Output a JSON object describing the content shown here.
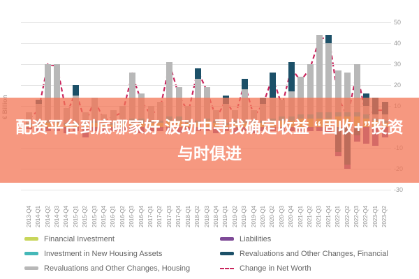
{
  "overlay": {
    "text": "配资平台到底哪家好 波动中寻找确定收益 “固收+”投资与时俱进",
    "bg_rgba": "rgba(243,118,86,0.75)",
    "text_color": "#ffffff"
  },
  "y_axis": {
    "unit_label": "€ Billion",
    "ticks": [
      50,
      40,
      30,
      20,
      10,
      0,
      -10,
      -20,
      -30
    ]
  },
  "legend": [
    {
      "label": "Financial Investment",
      "color": "#c8d65b",
      "type": "bar"
    },
    {
      "label": "Liabilities",
      "color": "#7e4a97",
      "type": "bar"
    },
    {
      "label": "Investment in New Housing Assets",
      "color": "#45b8b8",
      "type": "bar"
    },
    {
      "label": "Revaluations and Other Changes, Financial",
      "color": "#1c5068",
      "type": "bar"
    },
    {
      "label": "Revaluations and Other Changes, Housing",
      "color": "#b8b8b8",
      "type": "bar"
    },
    {
      "label": "Change in Net Worth",
      "color": "#c9255c",
      "type": "line"
    }
  ],
  "chart_data": {
    "type": "bar",
    "stacked": true,
    "grid": true,
    "legend_position": "bottom",
    "ylabel": "€ Billion",
    "ylim": [
      -30,
      50
    ],
    "categories": [
      "2013-Q4",
      "2014-Q1",
      "2014-Q2",
      "2014-Q3",
      "2014-Q4",
      "2015-Q1",
      "2015-Q2",
      "2015-Q3",
      "2015-Q4",
      "2016-Q1",
      "2016-Q2",
      "2016-Q3",
      "2016-Q4",
      "2017-Q1",
      "2017-Q2",
      "2017-Q3",
      "2017-Q4",
      "2018-Q1",
      "2018-Q2",
      "2018-Q3",
      "2018-Q4",
      "2019-Q1",
      "2019-Q2",
      "2019-Q3",
      "2019-Q4",
      "2020-Q1",
      "2020-Q2",
      "2020-Q3",
      "2020-Q4",
      "2021-Q1",
      "2021-Q2",
      "2021-Q3",
      "2021-Q4",
      "2022-Q1",
      "2022-Q2",
      "2022-Q3",
      "2022-Q4",
      "2023-Q1",
      "2023-Q2"
    ],
    "series": [
      {
        "name": "Financial Investment",
        "color": "#c8d65b",
        "values": [
          1,
          1,
          2,
          2,
          1,
          1,
          1,
          2,
          1,
          1,
          2,
          2,
          2,
          2,
          2,
          3,
          3,
          2,
          2,
          3,
          2,
          1,
          2,
          2,
          2,
          2,
          2,
          3,
          3,
          4,
          4,
          4,
          4,
          5,
          5,
          5,
          4,
          3,
          2
        ]
      },
      {
        "name": "Investment in New Housing Assets",
        "color": "#45b8b8",
        "values": [
          1,
          1,
          1,
          1,
          1,
          1,
          1,
          1,
          1,
          1,
          1,
          2,
          2,
          1,
          1,
          2,
          2,
          1,
          1,
          1,
          1,
          1,
          1,
          1,
          1,
          1,
          2,
          2,
          2,
          2,
          2,
          3,
          3,
          2,
          2,
          2,
          2,
          1,
          1
        ]
      },
      {
        "name": "Revaluations and Other Changes, Housing",
        "color": "#b8b8b8",
        "values": [
          5,
          9,
          27,
          27,
          7,
          13,
          5,
          11,
          4,
          6,
          7,
          22,
          12,
          7,
          9,
          26,
          14,
          7,
          20,
          15,
          5,
          9,
          5,
          15,
          5,
          8,
          10,
          8,
          12,
          18,
          24,
          37,
          33,
          20,
          19,
          23,
          4,
          2,
          3
        ]
      },
      {
        "name": "Revaluations and Other Changes, Financial",
        "color": "#1c5068",
        "values": [
          0,
          2,
          0,
          0,
          0,
          5,
          0,
          0,
          0,
          0,
          0,
          0,
          0,
          0,
          0,
          0,
          0,
          0,
          5,
          0,
          0,
          4,
          0,
          5,
          0,
          3,
          12,
          0,
          14,
          0,
          0,
          0,
          4,
          -12,
          -18,
          -4,
          6,
          8,
          6
        ]
      },
      {
        "name": "Liabilities",
        "color": "#7e4a97",
        "values": [
          -1,
          -2,
          -2,
          -2,
          -3,
          -2,
          -5,
          -2,
          -2,
          -2,
          -2,
          -2,
          -3,
          -2,
          -2,
          -2,
          -3,
          -2,
          -2,
          -2,
          -3,
          -2,
          -3,
          -2,
          -3,
          -2,
          -2,
          -2,
          -2,
          -2,
          -2,
          -2,
          -3,
          -2,
          -2,
          -3,
          -8,
          -9,
          -5
        ]
      }
    ],
    "line_series": {
      "name": "Change in Net Worth",
      "color": "#c9255c",
      "dashed": true,
      "values": [
        4,
        8,
        30,
        29,
        6,
        17,
        2,
        13,
        3,
        5,
        7,
        25,
        12,
        6,
        9,
        30,
        15,
        7,
        27,
        17,
        4,
        13,
        5,
        21,
        5,
        11,
        24,
        10,
        28,
        22,
        28,
        42,
        43,
        14,
        5,
        26,
        5,
        8,
        8
      ]
    }
  }
}
